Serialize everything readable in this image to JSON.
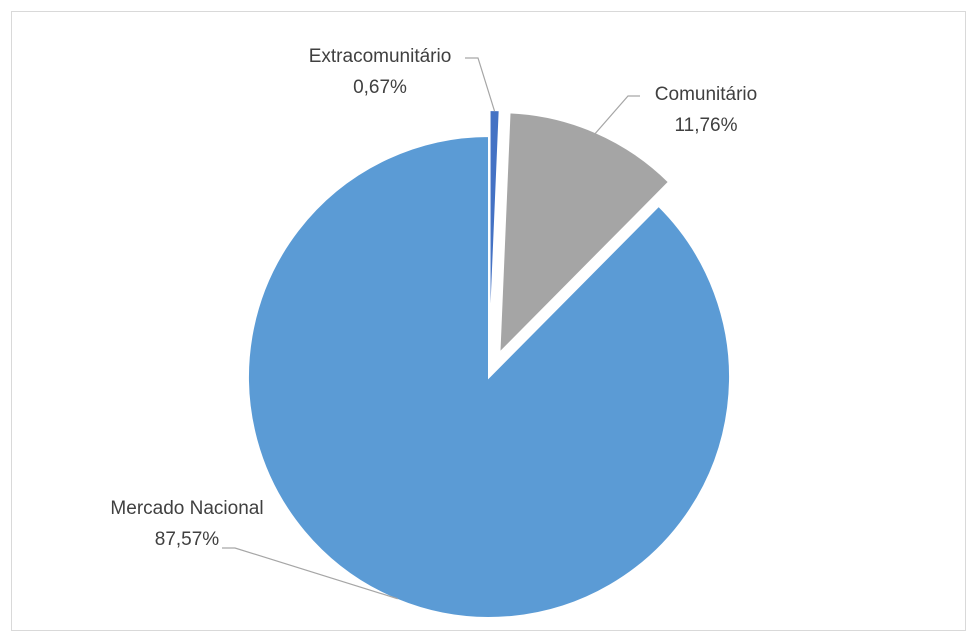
{
  "chart_data": {
    "type": "pie",
    "title": "",
    "legend": "none",
    "slices": [
      {
        "name": "Extracomunitário",
        "value": 0.67,
        "label": "0,67%",
        "color": "#4472c4",
        "exploded": true
      },
      {
        "name": "Comunitário",
        "value": 11.76,
        "label": "11,76%",
        "color": "#a5a5a5",
        "exploded": true
      },
      {
        "name": "Mercado Nacional",
        "value": 87.57,
        "label": "87,57%",
        "color": "#5b9bd5",
        "exploded": false
      }
    ]
  }
}
